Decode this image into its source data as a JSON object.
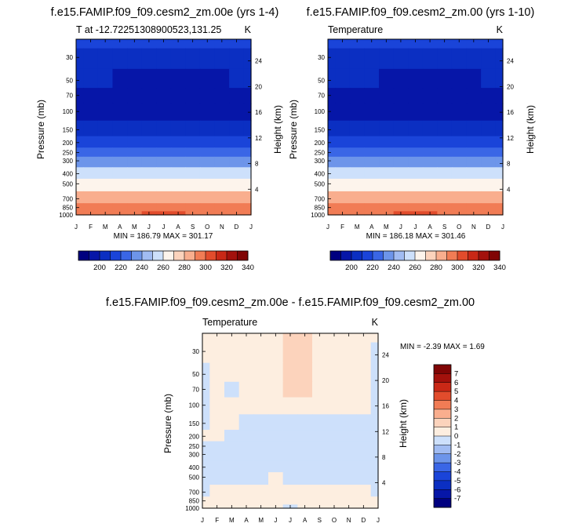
{
  "chart_data": [
    {
      "type": "heatmap",
      "title": "f.e15.FAMIP.f09_f09.cesm2_zm.00e (yrs 1-4)",
      "subtitle_left": "T at -12.72251308900523,131.25",
      "subtitle_right": "K",
      "xlabel": "",
      "ylabel": "Pressure (mb)",
      "ylabel_right": "Height (km)",
      "x_ticks": [
        "J",
        "F",
        "M",
        "A",
        "M",
        "J",
        "J",
        "A",
        "S",
        "O",
        "N",
        "D",
        "J"
      ],
      "y_ticks": [
        "30",
        "50",
        "70",
        "100",
        "150",
        "200",
        "250",
        "300",
        "400",
        "500",
        "700",
        "850",
        "1000"
      ],
      "y_ticks_right": [
        "24",
        "20",
        "16",
        "12",
        "8",
        "4"
      ],
      "ylim": [
        1000,
        20
      ],
      "y_scale": "log",
      "stats": "MIN = 186.79 MAX = 301.17",
      "levels_pressure": [
        20,
        30,
        50,
        70,
        100,
        150,
        200,
        250,
        300,
        400,
        500,
        700,
        850,
        1000
      ],
      "values_K": [
        [
          214,
          213,
          213,
          213,
          213,
          213,
          214,
          214,
          214,
          214,
          214,
          214,
          214
        ],
        [
          206,
          206,
          206,
          206,
          205,
          204,
          204,
          204,
          205,
          205,
          206,
          206,
          206
        ],
        [
          200,
          200,
          200,
          199,
          198,
          197,
          196,
          196,
          197,
          198,
          199,
          200,
          200
        ],
        [
          194,
          194,
          194,
          194,
          193,
          193,
          193,
          193,
          193,
          193,
          194,
          194,
          194
        ],
        [
          190,
          190,
          190,
          190,
          190,
          190,
          190,
          190,
          190,
          190,
          190,
          190,
          190
        ],
        [
          205,
          205,
          205,
          205,
          205,
          205,
          205,
          205,
          205,
          205,
          205,
          205,
          205
        ],
        [
          218,
          218,
          218,
          218,
          218,
          218,
          218,
          218,
          218,
          218,
          218,
          218,
          218
        ],
        [
          229,
          229,
          229,
          229,
          229,
          229,
          229,
          229,
          229,
          229,
          229,
          229,
          229
        ],
        [
          239,
          239,
          239,
          239,
          239,
          239,
          239,
          239,
          239,
          239,
          239,
          239,
          239
        ],
        [
          254,
          254,
          254,
          254,
          254,
          254,
          254,
          254,
          254,
          254,
          254,
          254,
          254
        ],
        [
          267,
          267,
          267,
          267,
          267,
          267,
          267,
          267,
          267,
          267,
          267,
          267,
          267
        ],
        [
          282,
          282,
          282,
          282,
          283,
          284,
          284,
          284,
          283,
          282,
          282,
          282,
          282
        ],
        [
          291,
          291,
          291,
          291,
          292,
          293,
          293,
          293,
          292,
          291,
          291,
          291,
          291
        ],
        [
          298,
          298,
          298,
          298,
          299,
          300,
          301,
          300,
          299,
          298,
          298,
          298,
          298
        ]
      ],
      "colorbar": {
        "levels": [
          190,
          200,
          210,
          220,
          230,
          240,
          250,
          260,
          270,
          280,
          290,
          300,
          310,
          320,
          330,
          340
        ],
        "labels": [
          "200",
          "220",
          "240",
          "260",
          "280",
          "300",
          "320",
          "340"
        ]
      }
    },
    {
      "type": "heatmap",
      "title": "f.e15.FAMIP.f09_f09.cesm2_zm.00 (yrs 1-10)",
      "subtitle_left": "Temperature",
      "subtitle_right": "K",
      "xlabel": "",
      "ylabel": "Pressure (mb)",
      "ylabel_right": "Height (km)",
      "x_ticks": [
        "J",
        "F",
        "M",
        "A",
        "M",
        "J",
        "J",
        "A",
        "S",
        "O",
        "N",
        "D",
        "J"
      ],
      "y_ticks": [
        "30",
        "50",
        "70",
        "100",
        "150",
        "200",
        "250",
        "300",
        "400",
        "500",
        "700",
        "850",
        "1000"
      ],
      "y_ticks_right": [
        "24",
        "20",
        "16",
        "12",
        "8",
        "4"
      ],
      "ylim": [
        1000,
        20
      ],
      "y_scale": "log",
      "stats": "MIN = 186.18 MAX = 301.46",
      "levels_pressure": [
        20,
        30,
        50,
        70,
        100,
        150,
        200,
        250,
        300,
        400,
        500,
        700,
        850,
        1000
      ],
      "values_K": [
        [
          214,
          213,
          213,
          213,
          213,
          213,
          214,
          214,
          214,
          214,
          214,
          214,
          214
        ],
        [
          206,
          206,
          206,
          206,
          206,
          205,
          204,
          204,
          205,
          205,
          206,
          206,
          206
        ],
        [
          200,
          200,
          200,
          200,
          199,
          198,
          197,
          196,
          197,
          198,
          199,
          200,
          200
        ],
        [
          194,
          194,
          194,
          194,
          194,
          193,
          193,
          193,
          193,
          193,
          194,
          194,
          194
        ],
        [
          190,
          190,
          190,
          190,
          190,
          190,
          190,
          190,
          190,
          190,
          190,
          190,
          190
        ],
        [
          205,
          205,
          205,
          205,
          205,
          205,
          205,
          205,
          205,
          205,
          205,
          205,
          205
        ],
        [
          218,
          218,
          218,
          218,
          218,
          218,
          218,
          218,
          218,
          218,
          218,
          218,
          218
        ],
        [
          229,
          229,
          229,
          229,
          229,
          229,
          229,
          229,
          229,
          229,
          229,
          229,
          229
        ],
        [
          239,
          239,
          239,
          239,
          239,
          239,
          239,
          239,
          239,
          239,
          239,
          239,
          239
        ],
        [
          254,
          254,
          254,
          254,
          254,
          254,
          254,
          254,
          254,
          254,
          254,
          254,
          254
        ],
        [
          267,
          267,
          267,
          267,
          267,
          267,
          267,
          267,
          267,
          267,
          267,
          267,
          267
        ],
        [
          282,
          282,
          282,
          282,
          283,
          284,
          284,
          284,
          283,
          282,
          282,
          282,
          282
        ],
        [
          291,
          291,
          291,
          291,
          292,
          293,
          293,
          293,
          292,
          291,
          291,
          291,
          291
        ],
        [
          298,
          298,
          298,
          298,
          299,
          300,
          301,
          300,
          299,
          298,
          298,
          298,
          298
        ]
      ],
      "colorbar": {
        "levels": [
          190,
          200,
          210,
          220,
          230,
          240,
          250,
          260,
          270,
          280,
          290,
          300,
          310,
          320,
          330,
          340
        ],
        "labels": [
          "200",
          "220",
          "240",
          "260",
          "280",
          "300",
          "320",
          "340"
        ]
      }
    },
    {
      "type": "heatmap",
      "title": "f.e15.FAMIP.f09_f09.cesm2_zm.00e - f.e15.FAMIP.f09_f09.cesm2_zm.00",
      "subtitle_left": "Temperature",
      "subtitle_right": "K",
      "xlabel": "",
      "ylabel": "Pressure (mb)",
      "ylabel_right": "Height (km)",
      "x_ticks": [
        "J",
        "F",
        "M",
        "A",
        "M",
        "J",
        "J",
        "A",
        "S",
        "O",
        "N",
        "D",
        "J"
      ],
      "y_ticks": [
        "30",
        "50",
        "70",
        "100",
        "150",
        "200",
        "250",
        "300",
        "400",
        "500",
        "700",
        "850",
        "1000"
      ],
      "y_ticks_right": [
        "24",
        "20",
        "16",
        "12",
        "8",
        "4"
      ],
      "ylim": [
        1000,
        20
      ],
      "y_scale": "log",
      "stats": "MIN = -2.39 MAX = 1.69",
      "levels_pressure": [
        20,
        30,
        50,
        70,
        100,
        150,
        200,
        250,
        300,
        400,
        500,
        700,
        850,
        1000
      ],
      "values_K": [
        [
          0.3,
          0.3,
          0.3,
          0.3,
          0.3,
          0.3,
          1.2,
          1.3,
          0.3,
          0.3,
          0.3,
          0.3,
          0.3
        ],
        [
          0.3,
          0.3,
          0.3,
          0.3,
          0.3,
          0.3,
          1.1,
          1.2,
          0.3,
          0.3,
          0.3,
          0.3,
          -0.3
        ],
        [
          -0.3,
          0.3,
          0.3,
          0.3,
          0.3,
          0.3,
          1.2,
          1.3,
          0.4,
          0.3,
          0.3,
          0.3,
          -0.3
        ],
        [
          -0.4,
          0.3,
          -0.3,
          0.3,
          0.3,
          0.3,
          1.2,
          1.3,
          0.3,
          0.3,
          0.3,
          0.3,
          -0.3
        ],
        [
          -0.3,
          0.3,
          0.3,
          0.3,
          0.3,
          0.3,
          0.4,
          0.3,
          0.3,
          0.3,
          0.3,
          0.3,
          -0.3
        ],
        [
          -0.3,
          0.3,
          0.3,
          -0.3,
          -0.3,
          -0.3,
          -0.3,
          -0.3,
          -0.3,
          -0.3,
          -0.3,
          -0.3,
          -0.3
        ],
        [
          0.3,
          0.3,
          -0.3,
          -0.3,
          -0.3,
          -0.3,
          -0.3,
          -0.3,
          -0.3,
          -0.3,
          -0.3,
          -0.3,
          -0.3
        ],
        [
          -0.3,
          -0.3,
          -0.3,
          -0.3,
          -0.3,
          -0.3,
          -0.3,
          -0.3,
          -0.3,
          -0.3,
          -0.3,
          -0.3,
          -0.3
        ],
        [
          -0.3,
          -0.3,
          -0.3,
          -0.3,
          -0.3,
          -0.3,
          -0.3,
          -0.3,
          -0.3,
          -0.3,
          -0.3,
          -0.3,
          -0.3
        ],
        [
          -0.3,
          -0.3,
          -0.3,
          -0.3,
          -0.3,
          -0.3,
          -0.3,
          -0.3,
          -0.3,
          -0.3,
          -0.3,
          -0.3,
          -0.3
        ],
        [
          -0.3,
          -0.3,
          -0.3,
          -0.3,
          -0.3,
          0.3,
          -0.3,
          -0.3,
          -0.3,
          -0.3,
          -0.3,
          -0.3,
          -0.3
        ],
        [
          -0.3,
          0.3,
          0.3,
          0.3,
          0.3,
          0.3,
          0.3,
          0.3,
          0.3,
          0.3,
          0.3,
          0.3,
          -0.3
        ],
        [
          0.3,
          0.3,
          0.3,
          0.3,
          0.3,
          0.3,
          0.3,
          0.3,
          0.3,
          0.3,
          0.3,
          0.3,
          0.3
        ],
        [
          0.4,
          0.3,
          0.3,
          0.3,
          0.3,
          0.3,
          -0.3,
          0.3,
          0.3,
          0.3,
          0.3,
          0.3,
          0.3
        ]
      ],
      "colorbar": {
        "levels": [
          -7,
          -6,
          -5,
          -4,
          -3,
          -2,
          -1,
          0,
          1,
          2,
          3,
          4,
          5,
          6,
          7
        ],
        "labels": [
          "7",
          "6",
          "5",
          "4",
          "3",
          "2",
          "1",
          "0",
          "-1",
          "-2",
          "-3",
          "-4",
          "-5",
          "-6",
          "-7"
        ]
      }
    }
  ],
  "colors": {
    "abs_palette": [
      "#00007f",
      "#0616a8",
      "#0b2fc2",
      "#1a44d9",
      "#3a66e6",
      "#6d95ea",
      "#a1bcf2",
      "#cde0fb",
      "#fdf4ec",
      "#fcd3bc",
      "#f9ae8e",
      "#f17c55",
      "#e24c2c",
      "#c92816",
      "#a3110c",
      "#800505"
    ],
    "diff_palette": [
      "#00007f",
      "#0616a8",
      "#0b2fc2",
      "#1a44d9",
      "#3a66e6",
      "#6d95ea",
      "#a1bcf2",
      "#cde0fb",
      "#fdeee0",
      "#fcd3bc",
      "#f9ae8e",
      "#f17c55",
      "#e24c2c",
      "#c92816",
      "#a3110c",
      "#800505"
    ]
  }
}
